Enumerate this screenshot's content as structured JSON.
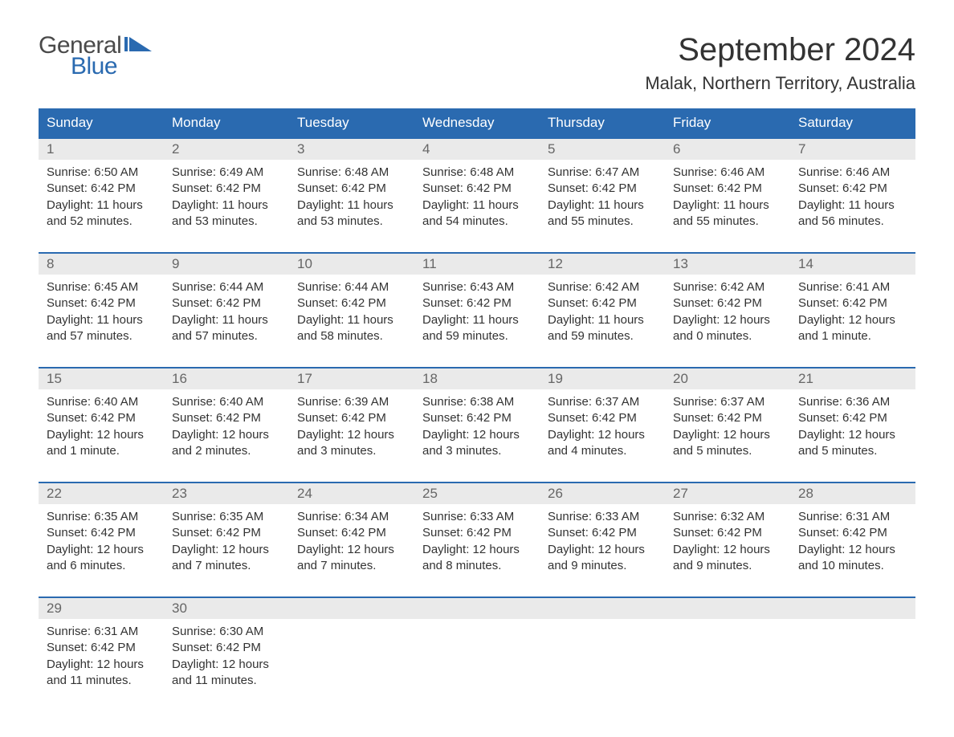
{
  "logo": {
    "text_general": "General",
    "text_blue": "Blue",
    "flag_color": "#2a6ab0"
  },
  "title": "September 2024",
  "location": "Malak, Northern Territory, Australia",
  "colors": {
    "header_bg": "#2a6ab0",
    "header_text": "#ffffff",
    "day_number_bg": "#eaeaea",
    "day_number_text": "#666666",
    "body_text": "#333333",
    "row_border": "#2a6ab0"
  },
  "weekdays": [
    "Sunday",
    "Monday",
    "Tuesday",
    "Wednesday",
    "Thursday",
    "Friday",
    "Saturday"
  ],
  "weeks": [
    [
      {
        "day": "1",
        "sunrise": "Sunrise: 6:50 AM",
        "sunset": "Sunset: 6:42 PM",
        "daylight": "Daylight: 11 hours and 52 minutes."
      },
      {
        "day": "2",
        "sunrise": "Sunrise: 6:49 AM",
        "sunset": "Sunset: 6:42 PM",
        "daylight": "Daylight: 11 hours and 53 minutes."
      },
      {
        "day": "3",
        "sunrise": "Sunrise: 6:48 AM",
        "sunset": "Sunset: 6:42 PM",
        "daylight": "Daylight: 11 hours and 53 minutes."
      },
      {
        "day": "4",
        "sunrise": "Sunrise: 6:48 AM",
        "sunset": "Sunset: 6:42 PM",
        "daylight": "Daylight: 11 hours and 54 minutes."
      },
      {
        "day": "5",
        "sunrise": "Sunrise: 6:47 AM",
        "sunset": "Sunset: 6:42 PM",
        "daylight": "Daylight: 11 hours and 55 minutes."
      },
      {
        "day": "6",
        "sunrise": "Sunrise: 6:46 AM",
        "sunset": "Sunset: 6:42 PM",
        "daylight": "Daylight: 11 hours and 55 minutes."
      },
      {
        "day": "7",
        "sunrise": "Sunrise: 6:46 AM",
        "sunset": "Sunset: 6:42 PM",
        "daylight": "Daylight: 11 hours and 56 minutes."
      }
    ],
    [
      {
        "day": "8",
        "sunrise": "Sunrise: 6:45 AM",
        "sunset": "Sunset: 6:42 PM",
        "daylight": "Daylight: 11 hours and 57 minutes."
      },
      {
        "day": "9",
        "sunrise": "Sunrise: 6:44 AM",
        "sunset": "Sunset: 6:42 PM",
        "daylight": "Daylight: 11 hours and 57 minutes."
      },
      {
        "day": "10",
        "sunrise": "Sunrise: 6:44 AM",
        "sunset": "Sunset: 6:42 PM",
        "daylight": "Daylight: 11 hours and 58 minutes."
      },
      {
        "day": "11",
        "sunrise": "Sunrise: 6:43 AM",
        "sunset": "Sunset: 6:42 PM",
        "daylight": "Daylight: 11 hours and 59 minutes."
      },
      {
        "day": "12",
        "sunrise": "Sunrise: 6:42 AM",
        "sunset": "Sunset: 6:42 PM",
        "daylight": "Daylight: 11 hours and 59 minutes."
      },
      {
        "day": "13",
        "sunrise": "Sunrise: 6:42 AM",
        "sunset": "Sunset: 6:42 PM",
        "daylight": "Daylight: 12 hours and 0 minutes."
      },
      {
        "day": "14",
        "sunrise": "Sunrise: 6:41 AM",
        "sunset": "Sunset: 6:42 PM",
        "daylight": "Daylight: 12 hours and 1 minute."
      }
    ],
    [
      {
        "day": "15",
        "sunrise": "Sunrise: 6:40 AM",
        "sunset": "Sunset: 6:42 PM",
        "daylight": "Daylight: 12 hours and 1 minute."
      },
      {
        "day": "16",
        "sunrise": "Sunrise: 6:40 AM",
        "sunset": "Sunset: 6:42 PM",
        "daylight": "Daylight: 12 hours and 2 minutes."
      },
      {
        "day": "17",
        "sunrise": "Sunrise: 6:39 AM",
        "sunset": "Sunset: 6:42 PM",
        "daylight": "Daylight: 12 hours and 3 minutes."
      },
      {
        "day": "18",
        "sunrise": "Sunrise: 6:38 AM",
        "sunset": "Sunset: 6:42 PM",
        "daylight": "Daylight: 12 hours and 3 minutes."
      },
      {
        "day": "19",
        "sunrise": "Sunrise: 6:37 AM",
        "sunset": "Sunset: 6:42 PM",
        "daylight": "Daylight: 12 hours and 4 minutes."
      },
      {
        "day": "20",
        "sunrise": "Sunrise: 6:37 AM",
        "sunset": "Sunset: 6:42 PM",
        "daylight": "Daylight: 12 hours and 5 minutes."
      },
      {
        "day": "21",
        "sunrise": "Sunrise: 6:36 AM",
        "sunset": "Sunset: 6:42 PM",
        "daylight": "Daylight: 12 hours and 5 minutes."
      }
    ],
    [
      {
        "day": "22",
        "sunrise": "Sunrise: 6:35 AM",
        "sunset": "Sunset: 6:42 PM",
        "daylight": "Daylight: 12 hours and 6 minutes."
      },
      {
        "day": "23",
        "sunrise": "Sunrise: 6:35 AM",
        "sunset": "Sunset: 6:42 PM",
        "daylight": "Daylight: 12 hours and 7 minutes."
      },
      {
        "day": "24",
        "sunrise": "Sunrise: 6:34 AM",
        "sunset": "Sunset: 6:42 PM",
        "daylight": "Daylight: 12 hours and 7 minutes."
      },
      {
        "day": "25",
        "sunrise": "Sunrise: 6:33 AM",
        "sunset": "Sunset: 6:42 PM",
        "daylight": "Daylight: 12 hours and 8 minutes."
      },
      {
        "day": "26",
        "sunrise": "Sunrise: 6:33 AM",
        "sunset": "Sunset: 6:42 PM",
        "daylight": "Daylight: 12 hours and 9 minutes."
      },
      {
        "day": "27",
        "sunrise": "Sunrise: 6:32 AM",
        "sunset": "Sunset: 6:42 PM",
        "daylight": "Daylight: 12 hours and 9 minutes."
      },
      {
        "day": "28",
        "sunrise": "Sunrise: 6:31 AM",
        "sunset": "Sunset: 6:42 PM",
        "daylight": "Daylight: 12 hours and 10 minutes."
      }
    ],
    [
      {
        "day": "29",
        "sunrise": "Sunrise: 6:31 AM",
        "sunset": "Sunset: 6:42 PM",
        "daylight": "Daylight: 12 hours and 11 minutes."
      },
      {
        "day": "30",
        "sunrise": "Sunrise: 6:30 AM",
        "sunset": "Sunset: 6:42 PM",
        "daylight": "Daylight: 12 hours and 11 minutes."
      },
      {
        "day": "",
        "sunrise": "",
        "sunset": "",
        "daylight": ""
      },
      {
        "day": "",
        "sunrise": "",
        "sunset": "",
        "daylight": ""
      },
      {
        "day": "",
        "sunrise": "",
        "sunset": "",
        "daylight": ""
      },
      {
        "day": "",
        "sunrise": "",
        "sunset": "",
        "daylight": ""
      },
      {
        "day": "",
        "sunrise": "",
        "sunset": "",
        "daylight": ""
      }
    ]
  ]
}
